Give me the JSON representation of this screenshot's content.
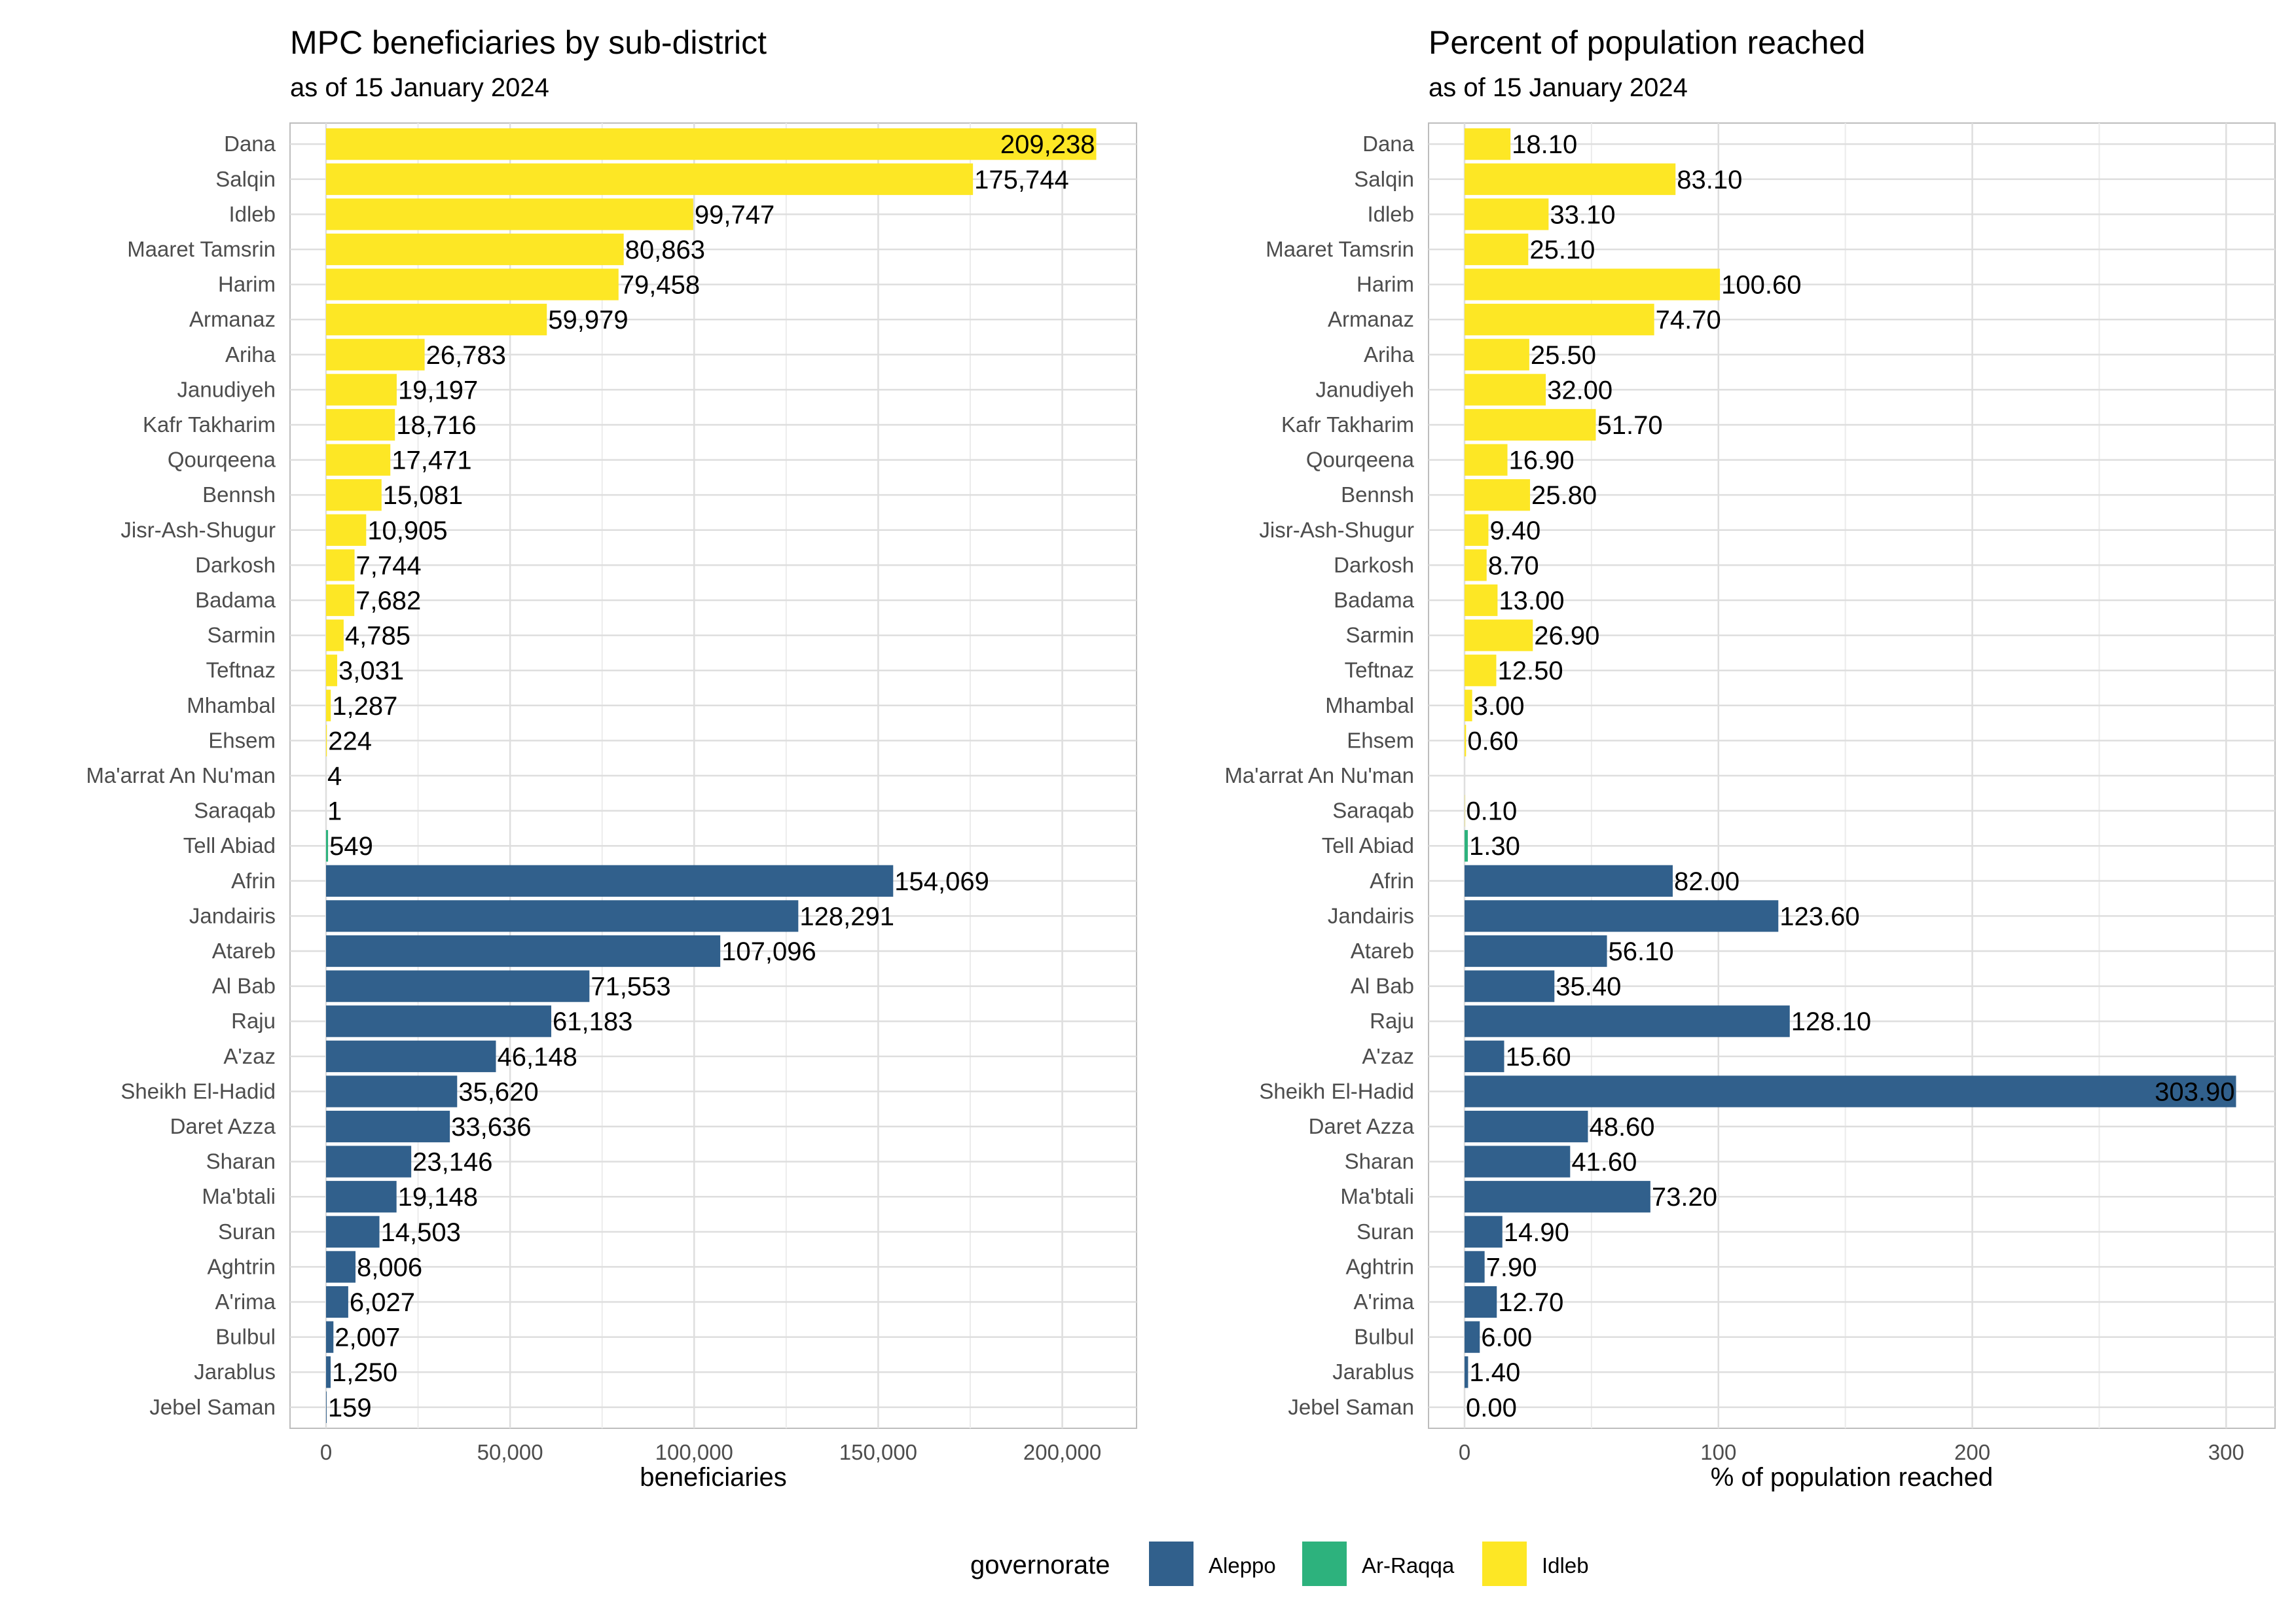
{
  "chart_data": [
    {
      "type": "bar",
      "orientation": "horizontal",
      "title": "MPC beneficiaries by sub-district",
      "subtitle": "as of 15 January 2024",
      "xlabel": "beneficiaries",
      "ylabel": "",
      "xlim": [
        0,
        220000
      ],
      "xticks": [
        0,
        50000,
        100000,
        150000,
        200000
      ],
      "xtick_labels": [
        "0",
        "50,000",
        "100,000",
        "150,000",
        "200,000"
      ],
      "grid": true,
      "categories": [
        "Dana",
        "Salqin",
        "Idleb",
        "Maaret Tamsrin",
        "Harim",
        "Armanaz",
        "Ariha",
        "Janudiyeh",
        "Kafr Takharim",
        "Qourqeena",
        "Bennsh",
        "Jisr-Ash-Shugur",
        "Darkosh",
        "Badama",
        "Sarmin",
        "Teftnaz",
        "Mhambal",
        "Ehsem",
        "Ma'arrat An Nu'man",
        "Saraqab",
        "Tell Abiad",
        "Afrin",
        "Jandairis",
        "Atareb",
        "Al Bab",
        "Raju",
        "A'zaz",
        "Sheikh El-Hadid",
        "Daret Azza",
        "Sharan",
        "Ma'btali",
        "Suran",
        "Aghtrin",
        "A'rima",
        "Bulbul",
        "Jarablus",
        "Jebel Saman"
      ],
      "values": [
        209238,
        175744,
        99747,
        80863,
        79458,
        59979,
        26783,
        19197,
        18716,
        17471,
        15081,
        10905,
        7744,
        7682,
        4785,
        3031,
        1287,
        224,
        4,
        1,
        549,
        154069,
        128291,
        107096,
        71553,
        61183,
        46148,
        35620,
        33636,
        23146,
        19148,
        14503,
        8006,
        6027,
        2007,
        1250,
        159
      ],
      "value_labels": [
        "209,238",
        "175,744",
        "99,747",
        "80,863",
        "79,458",
        "59,979",
        "26,783",
        "19,197",
        "18,716",
        "17,471",
        "15,081",
        "10,905",
        "7,744",
        "7,682",
        "4,785",
        "3,031",
        "1,287",
        "224",
        "4",
        "1",
        "549",
        "154,069",
        "128,291",
        "107,096",
        "71,553",
        "61,183",
        "46,148",
        "35,620",
        "33,636",
        "23,146",
        "19,148",
        "14,503",
        "8,006",
        "6,027",
        "2,007",
        "1,250",
        "159"
      ],
      "groups": [
        "Idleb",
        "Idleb",
        "Idleb",
        "Idleb",
        "Idleb",
        "Idleb",
        "Idleb",
        "Idleb",
        "Idleb",
        "Idleb",
        "Idleb",
        "Idleb",
        "Idleb",
        "Idleb",
        "Idleb",
        "Idleb",
        "Idleb",
        "Idleb",
        "Idleb",
        "Idleb",
        "Ar-Raqqa",
        "Aleppo",
        "Aleppo",
        "Aleppo",
        "Aleppo",
        "Aleppo",
        "Aleppo",
        "Aleppo",
        "Aleppo",
        "Aleppo",
        "Aleppo",
        "Aleppo",
        "Aleppo",
        "Aleppo",
        "Aleppo",
        "Aleppo",
        "Aleppo"
      ]
    },
    {
      "type": "bar",
      "orientation": "horizontal",
      "title": "Percent of population reached",
      "subtitle": "as of 15 January 2024",
      "xlabel": "% of population reached",
      "ylabel": "",
      "xlim": [
        0,
        319
      ],
      "xticks": [
        0,
        100,
        200,
        300
      ],
      "xtick_labels": [
        "0",
        "100",
        "200",
        "300"
      ],
      "grid": true,
      "categories": [
        "Dana",
        "Salqin",
        "Idleb",
        "Maaret Tamsrin",
        "Harim",
        "Armanaz",
        "Ariha",
        "Janudiyeh",
        "Kafr Takharim",
        "Qourqeena",
        "Bennsh",
        "Jisr-Ash-Shugur",
        "Darkosh",
        "Badama",
        "Sarmin",
        "Teftnaz",
        "Mhambal",
        "Ehsem",
        "Ma'arrat An Nu'man",
        "Saraqab",
        "Tell Abiad",
        "Afrin",
        "Jandairis",
        "Atareb",
        "Al Bab",
        "Raju",
        "A'zaz",
        "Sheikh El-Hadid",
        "Daret Azza",
        "Sharan",
        "Ma'btali",
        "Suran",
        "Aghtrin",
        "A'rima",
        "Bulbul",
        "Jarablus",
        "Jebel Saman"
      ],
      "values": [
        18.1,
        83.1,
        33.1,
        25.1,
        100.6,
        74.7,
        25.5,
        32.0,
        51.7,
        16.9,
        25.8,
        9.4,
        8.7,
        13.0,
        26.9,
        12.5,
        3.0,
        0.6,
        null,
        0.1,
        1.3,
        82.0,
        123.6,
        56.1,
        35.4,
        128.1,
        15.6,
        303.9,
        48.6,
        41.6,
        73.2,
        14.9,
        7.9,
        12.7,
        6.0,
        1.4,
        0.0
      ],
      "value_labels": [
        "18.10",
        "83.10",
        "33.10",
        "25.10",
        "100.60",
        "74.70",
        "25.50",
        "32.00",
        "51.70",
        "16.90",
        "25.80",
        "9.40",
        "8.70",
        "13.00",
        "26.90",
        "12.50",
        "3.00",
        "0.60",
        "",
        "0.10",
        "1.30",
        "82.00",
        "123.60",
        "56.10",
        "35.40",
        "128.10",
        "15.60",
        "303.90",
        "48.60",
        "41.60",
        "73.20",
        "14.90",
        "7.90",
        "12.70",
        "6.00",
        "1.40",
        "0.00"
      ],
      "groups": [
        "Idleb",
        "Idleb",
        "Idleb",
        "Idleb",
        "Idleb",
        "Idleb",
        "Idleb",
        "Idleb",
        "Idleb",
        "Idleb",
        "Idleb",
        "Idleb",
        "Idleb",
        "Idleb",
        "Idleb",
        "Idleb",
        "Idleb",
        "Idleb",
        "Idleb",
        "Idleb",
        "Ar-Raqqa",
        "Aleppo",
        "Aleppo",
        "Aleppo",
        "Aleppo",
        "Aleppo",
        "Aleppo",
        "Aleppo",
        "Aleppo",
        "Aleppo",
        "Aleppo",
        "Aleppo",
        "Aleppo",
        "Aleppo",
        "Aleppo",
        "Aleppo",
        "Aleppo"
      ]
    }
  ],
  "legend": {
    "title": "governorate",
    "placement": "bottom",
    "items": [
      {
        "label": "Aleppo",
        "color": "#31608C"
      },
      {
        "label": "Ar-Raqqa",
        "color": "#2DB27D"
      },
      {
        "label": "Idleb",
        "color": "#FDE725"
      }
    ]
  }
}
